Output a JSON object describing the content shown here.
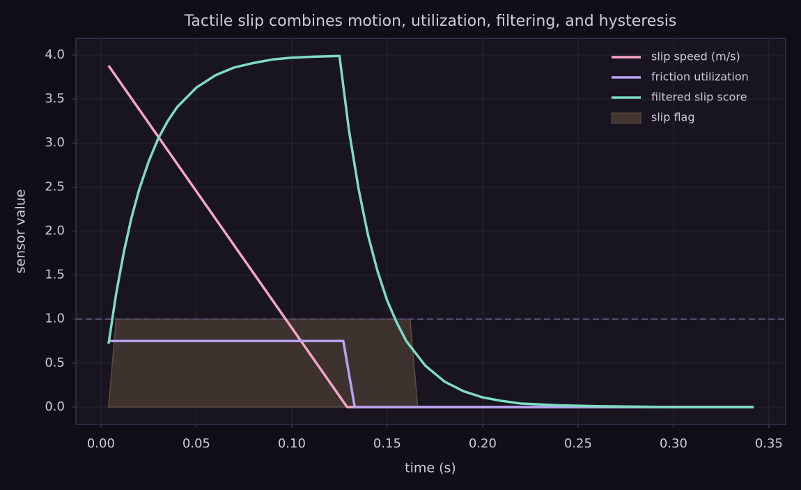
{
  "chart_data": {
    "type": "line",
    "title": "Tactile slip combines motion, utilization, filtering, and hysteresis",
    "xlabel": "time (s)",
    "ylabel": "sensor value",
    "xlim": [
      -0.0131,
      0.3588
    ],
    "ylim": [
      -0.198,
      4.19
    ],
    "xticks": [
      {
        "value": 0,
        "label": "0.00"
      },
      {
        "value": 0.05,
        "label": "0.05"
      },
      {
        "value": 0.1,
        "label": "0.10"
      },
      {
        "value": 0.15,
        "label": "0.15"
      },
      {
        "value": 0.2,
        "label": "0.20"
      },
      {
        "value": 0.25,
        "label": "0.25"
      },
      {
        "value": 0.3,
        "label": "0.30"
      },
      {
        "value": 0.35,
        "label": "0.35"
      }
    ],
    "yticks": [
      {
        "value": 0,
        "label": "0.0"
      },
      {
        "value": 0.5,
        "label": "0.5"
      },
      {
        "value": 1,
        "label": "1.0"
      },
      {
        "value": 1.5,
        "label": "1.5"
      },
      {
        "value": 2,
        "label": "2.0"
      },
      {
        "value": 2.5,
        "label": "2.5"
      },
      {
        "value": 3,
        "label": "3.0"
      },
      {
        "value": 3.5,
        "label": "3.5"
      },
      {
        "value": 4,
        "label": "4.0"
      }
    ],
    "grid": true,
    "legend": "upper right",
    "hline": 1.0,
    "series": [
      {
        "name": "slip speed (m/s)",
        "color": "#f4a6c4",
        "style": "line",
        "x": [
          0.004,
          0.129,
          0.342
        ],
        "values": [
          3.88,
          0,
          0
        ]
      },
      {
        "name": "friction utilization",
        "color": "#b9a3f4",
        "style": "line",
        "x": [
          0.004,
          0.127,
          0.133,
          0.342
        ],
        "values": [
          0.75,
          0.75,
          0,
          0
        ]
      },
      {
        "name": "filtered slip score",
        "color": "#7fdcc0",
        "style": "line",
        "x": [
          0.004,
          0.008,
          0.012,
          0.016,
          0.02,
          0.025,
          0.03,
          0.035,
          0.04,
          0.05,
          0.06,
          0.07,
          0.08,
          0.09,
          0.1,
          0.11,
          0.125,
          0.13,
          0.135,
          0.14,
          0.145,
          0.15,
          0.155,
          0.16,
          0.17,
          0.18,
          0.19,
          0.2,
          0.21,
          0.22,
          0.24,
          0.26,
          0.3,
          0.342
        ],
        "values": [
          0.72,
          1.29,
          1.76,
          2.15,
          2.47,
          2.79,
          3.05,
          3.25,
          3.41,
          3.63,
          3.77,
          3.86,
          3.91,
          3.95,
          3.97,
          3.98,
          3.99,
          3.14,
          2.48,
          1.95,
          1.54,
          1.21,
          0.96,
          0.75,
          0.47,
          0.29,
          0.18,
          0.11,
          0.07,
          0.04,
          0.02,
          0.01,
          0,
          0
        ]
      },
      {
        "name": "slip flag",
        "color": "#433530",
        "style": "area",
        "x": [
          0.004,
          0.008,
          0.162,
          0.166
        ],
        "values": [
          0,
          1,
          1,
          0
        ]
      }
    ]
  }
}
